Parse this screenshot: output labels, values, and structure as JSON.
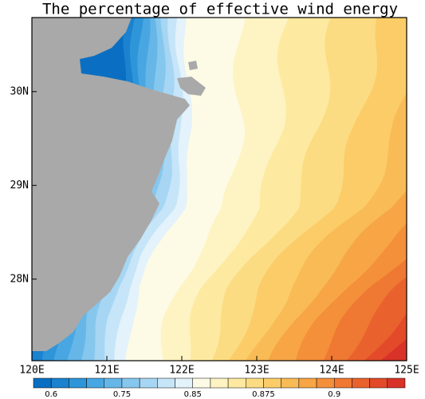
{
  "chart_data": {
    "type": "contour-map",
    "title": "The percentage of effective wind energy",
    "xlim": [
      120,
      125
    ],
    "ylim": [
      27.13,
      30.79
    ],
    "xticks": [
      {
        "value": 120,
        "label": "120E"
      },
      {
        "value": 121,
        "label": "121E"
      },
      {
        "value": 122,
        "label": "122E"
      },
      {
        "value": 123,
        "label": "123E"
      },
      {
        "value": 124,
        "label": "124E"
      },
      {
        "value": 125,
        "label": "125E"
      }
    ],
    "yticks": [
      {
        "value": 28,
        "label": "28N"
      },
      {
        "value": 29,
        "label": "29N"
      },
      {
        "value": 30,
        "label": "30N"
      }
    ],
    "land_color": "#a9a9a9",
    "colorbar": {
      "colors": [
        "#0a6fc2",
        "#1a82cf",
        "#2e95d9",
        "#48a7e2",
        "#66b7e8",
        "#86c7ee",
        "#a6d6f3",
        "#c6e5f8",
        "#e3f2fb",
        "#fdfbe6",
        "#fef3c2",
        "#fde9a0",
        "#fcdc82",
        "#fbcc68",
        "#f9bb55",
        "#f7a545",
        "#f48f3a",
        "#ef7832",
        "#e9622d",
        "#e24a2a",
        "#d93228"
      ],
      "labels": [
        0.6,
        0.75,
        0.85,
        0.875,
        0.9
      ]
    }
  }
}
